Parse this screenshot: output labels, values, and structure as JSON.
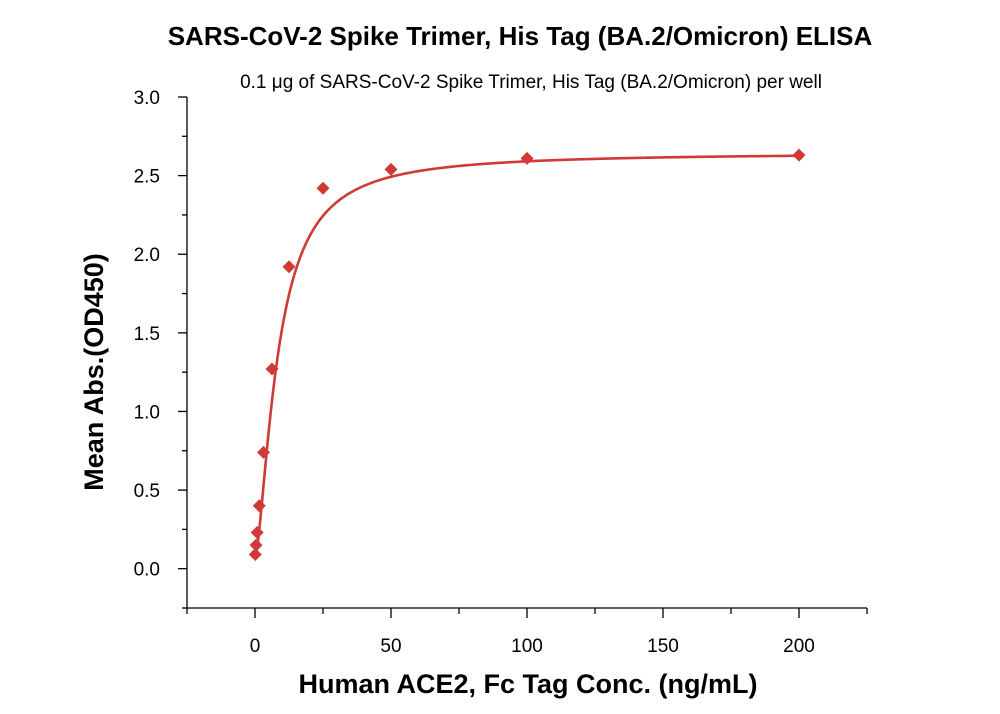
{
  "chart_data": {
    "type": "scatter",
    "title": "SARS-CoV-2 Spike Trimer, His Tag (BA.2/Omicron) ELISA",
    "subtitle": "0.1 μg of SARS-CoV-2 Spike Trimer, His Tag (BA.2/Omicron) per well",
    "xlabel": "Human ACE2, Fc Tag Conc. (ng/mL)",
    "ylabel": "Mean Abs.(OD450)",
    "xlim": [
      -25,
      225
    ],
    "ylim": [
      -0.25,
      3.0
    ],
    "xticks": [
      0,
      50,
      100,
      150,
      200
    ],
    "xtick_labels": [
      "0",
      "50",
      "100",
      "150",
      "200"
    ],
    "yticks": [
      0.0,
      0.5,
      1.0,
      1.5,
      2.0,
      2.5,
      3.0
    ],
    "ytick_labels": [
      "0.0",
      "0.5",
      "1.0",
      "1.5",
      "2.0",
      "2.5",
      "3.0"
    ],
    "grid": false,
    "series": [
      {
        "marker": "diamond",
        "color": "#d03a36",
        "x": [
          0.098,
          0.39,
          0.78,
          1.56,
          3.13,
          6.25,
          12.5,
          25,
          50,
          100,
          200
        ],
        "y": [
          0.09,
          0.15,
          0.23,
          0.4,
          0.74,
          1.27,
          1.92,
          2.42,
          2.54,
          2.61,
          2.63
        ]
      }
    ],
    "fit_curve": {
      "color": "#d03a36",
      "model": "4PL",
      "bottom": 0.07,
      "top": 2.645,
      "ec50": 8.4,
      "hill": 1.55
    }
  }
}
